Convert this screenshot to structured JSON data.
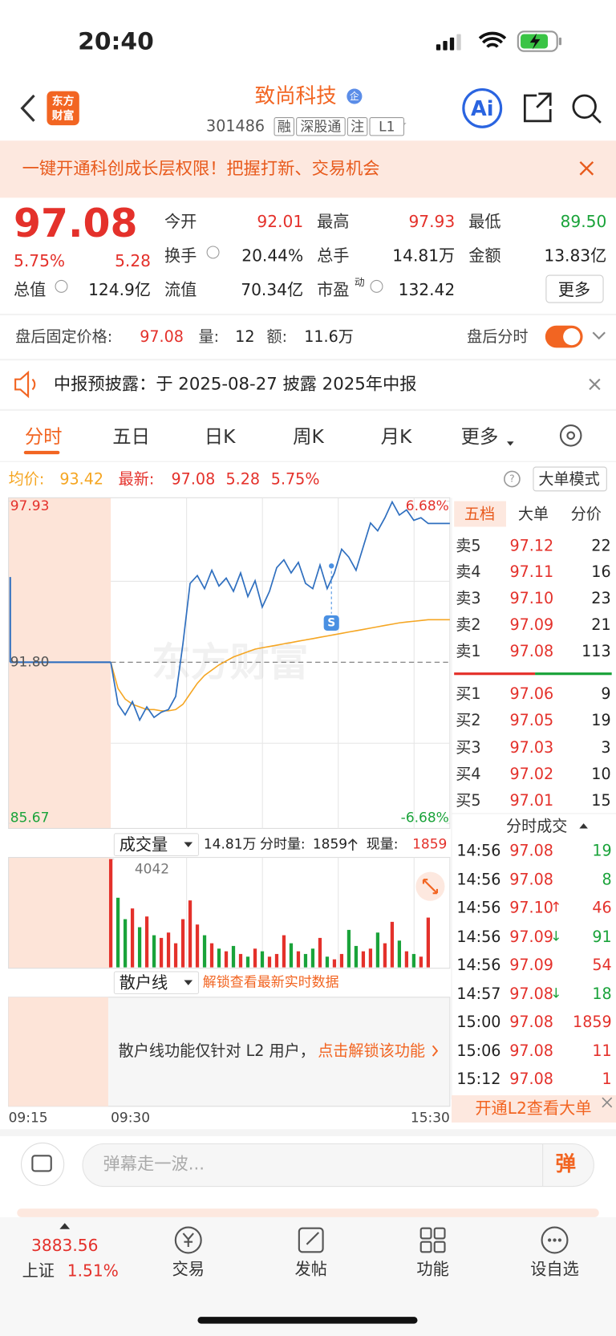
{
  "status_bar": {
    "time": "20:40"
  },
  "header": {
    "logo": [
      "东方",
      "财富"
    ],
    "name": "致尚科技",
    "badge": "企",
    "code": "301486",
    "tags": [
      "融",
      "深股通",
      "注",
      "L1"
    ],
    "ai": "Ai"
  },
  "banner": {
    "text": "一键开通科创成长层权限！把握打新、交易机会"
  },
  "quote": {
    "price": "97.08",
    "change_pct": "5.75%",
    "change": "5.28",
    "fields": [
      {
        "label": "今开",
        "value": "92.01"
      },
      {
        "label": "最高",
        "value": "97.93"
      },
      {
        "label": "最低",
        "value": "89.50"
      },
      {
        "label": "换手",
        "value": "20.44%"
      },
      {
        "label": "总手",
        "value": "14.81万"
      },
      {
        "label": "金额",
        "value": "13.83亿"
      },
      {
        "label": "总值",
        "value": "124.9亿"
      },
      {
        "label": "流值",
        "value": "70.34亿"
      },
      {
        "label": "市盈",
        "sup": "动",
        "value": "132.42"
      }
    ],
    "more": "更多"
  },
  "after_hours": {
    "label": "盘后固定价格:",
    "price": "97.08",
    "vol_label": "量:",
    "vol": "12",
    "amt_label": "额:",
    "amt": "11.6万",
    "toggle_label": "盘后分时"
  },
  "notice": {
    "text": "中报预披露：于 2025-08-27 披露 2025年中报"
  },
  "tabs": [
    "分时",
    "五日",
    "日K",
    "周K",
    "月K",
    "更多"
  ],
  "intraday": {
    "avg_label": "均价:",
    "avg": "93.42",
    "last_label": "最新:",
    "last": "97.08",
    "change": "5.28",
    "change_pct": "5.75%",
    "help": "?",
    "mode": "大单模式",
    "watermark": "东方财富",
    "marker": "S",
    "ylim": [
      85.67,
      97.93
    ],
    "yticks": [
      97.93,
      {
        "value": 91.8,
        "label": "91.80"
      },
      85.67
    ],
    "y2lim": [
      -6.68,
      6.68
    ],
    "y2ticks": [
      {
        "value": 6.68,
        "label": "6.68%"
      },
      {
        "value": -6.68,
        "label": "-6.68%"
      }
    ],
    "xticks": [
      "09:15",
      "09:30",
      "15:30"
    ],
    "price": [
      91.8,
      90.2,
      89.8,
      90.3,
      89.6,
      90.1,
      89.7,
      89.9,
      90.0,
      90.5,
      92.5,
      94.8,
      95.1,
      94.6,
      95.3,
      94.7,
      95.0,
      94.5,
      95.2,
      94.3,
      94.9,
      93.9,
      94.5,
      95.4,
      95.7,
      95.2,
      95.6,
      94.8,
      94.6,
      95.5,
      94.6,
      95.2,
      96.1,
      95.8,
      95.3,
      96.2,
      97.1,
      96.8,
      97.3,
      97.9,
      97.4,
      97.6,
      97.2,
      97.3,
      97.08,
      97.08,
      97.08,
      97.08
    ],
    "avg_line": [
      91.8,
      90.8,
      90.4,
      90.2,
      90.1,
      90.0,
      90.0,
      89.95,
      89.95,
      90.0,
      90.2,
      90.6,
      91.0,
      91.3,
      91.5,
      91.7,
      91.85,
      92.0,
      92.1,
      92.2,
      92.3,
      92.35,
      92.4,
      92.45,
      92.5,
      92.55,
      92.6,
      92.65,
      92.7,
      92.75,
      92.8,
      92.85,
      92.9,
      92.95,
      93.0,
      93.05,
      93.1,
      93.15,
      93.2,
      93.25,
      93.3,
      93.33,
      93.36,
      93.39,
      93.42,
      93.42,
      93.42,
      93.42
    ],
    "volume_header": {
      "label": "成交量",
      "total": "14.81万",
      "minute_label": "分时量:",
      "minute": "1859",
      "now_label": "现量:",
      "now": "1859"
    },
    "vol_ylim": [
      0,
      4042
    ],
    "vol_yticks": [
      4042
    ],
    "volume": [
      4042,
      2600,
      1800,
      2200,
      1500,
      1900,
      1200,
      1100,
      1300,
      900,
      1800,
      2500,
      1600,
      1200,
      900,
      700,
      600,
      800,
      500,
      400,
      700,
      600,
      400,
      500,
      1200,
      900,
      600,
      500,
      700,
      1100,
      400,
      300,
      500,
      1400,
      800,
      600,
      700,
      1300,
      900,
      1700,
      1000,
      600,
      500,
      400,
      1859,
      0,
      0,
      0
    ],
    "volume_up": [
      true,
      false,
      false,
      true,
      false,
      true,
      false,
      true,
      true,
      true,
      true,
      true,
      true,
      false,
      true,
      false,
      true,
      false,
      true,
      false,
      true,
      false,
      true,
      true,
      true,
      false,
      true,
      false,
      false,
      true,
      false,
      true,
      true,
      false,
      false,
      true,
      true,
      false,
      true,
      true,
      false,
      true,
      false,
      true,
      true,
      true,
      true,
      true
    ],
    "retail": {
      "label": "散户线",
      "unlock": "解锁查看最新实时数据",
      "text": "散户线功能仅针对 L2 用户，",
      "link": "点击解锁该功能"
    }
  },
  "order_book": {
    "tabs": [
      "五档",
      "大单",
      "分价"
    ],
    "asks": [
      {
        "label": "卖5",
        "price": "97.12",
        "vol": "22"
      },
      {
        "label": "卖4",
        "price": "97.11",
        "vol": "16"
      },
      {
        "label": "卖3",
        "price": "97.10",
        "vol": "23"
      },
      {
        "label": "卖2",
        "price": "97.09",
        "vol": "21"
      },
      {
        "label": "卖1",
        "price": "97.08",
        "vol": "113"
      }
    ],
    "bids": [
      {
        "label": "买1",
        "price": "97.06",
        "vol": "9"
      },
      {
        "label": "买2",
        "price": "97.05",
        "vol": "19"
      },
      {
        "label": "买3",
        "price": "97.03",
        "vol": "3"
      },
      {
        "label": "买4",
        "price": "97.02",
        "vol": "10"
      },
      {
        "label": "买5",
        "price": "97.01",
        "vol": "15"
      }
    ]
  },
  "trades": {
    "title": "分时成交",
    "rows": [
      {
        "time": "14:56",
        "price": "97.08",
        "vol": "19",
        "color": "#1aa33a"
      },
      {
        "time": "14:56",
        "price": "97.08",
        "vol": "8",
        "color": "#1aa33a"
      },
      {
        "time": "14:56",
        "price": "97.10",
        "arrow": "↑",
        "vol": "46",
        "color": "#e4312b"
      },
      {
        "time": "14:56",
        "price": "97.09",
        "arrow": "↓",
        "vol": "91",
        "color": "#1aa33a"
      },
      {
        "time": "14:56",
        "price": "97.09",
        "vol": "54",
        "color": "#e4312b"
      },
      {
        "time": "14:57",
        "price": "97.08",
        "arrow": "↓",
        "vol": "18",
        "color": "#1aa33a"
      },
      {
        "time": "15:00",
        "price": "97.08",
        "vol": "1859",
        "color": "#e4312b"
      },
      {
        "time": "15:06",
        "price": "97.08",
        "vol": "11",
        "color": "#e4312b"
      },
      {
        "time": "15:12",
        "price": "97.08",
        "vol": "1",
        "color": "#e4312b"
      }
    ],
    "cta": "开通L2查看大单"
  },
  "comment": {
    "placeholder": "弹幕走一波...",
    "button": "弹"
  },
  "nav": {
    "index_value": "3883.56",
    "index_name": "上证",
    "index_change": "1.51%",
    "items": [
      "交易",
      "发帖",
      "功能",
      "设自选"
    ]
  }
}
